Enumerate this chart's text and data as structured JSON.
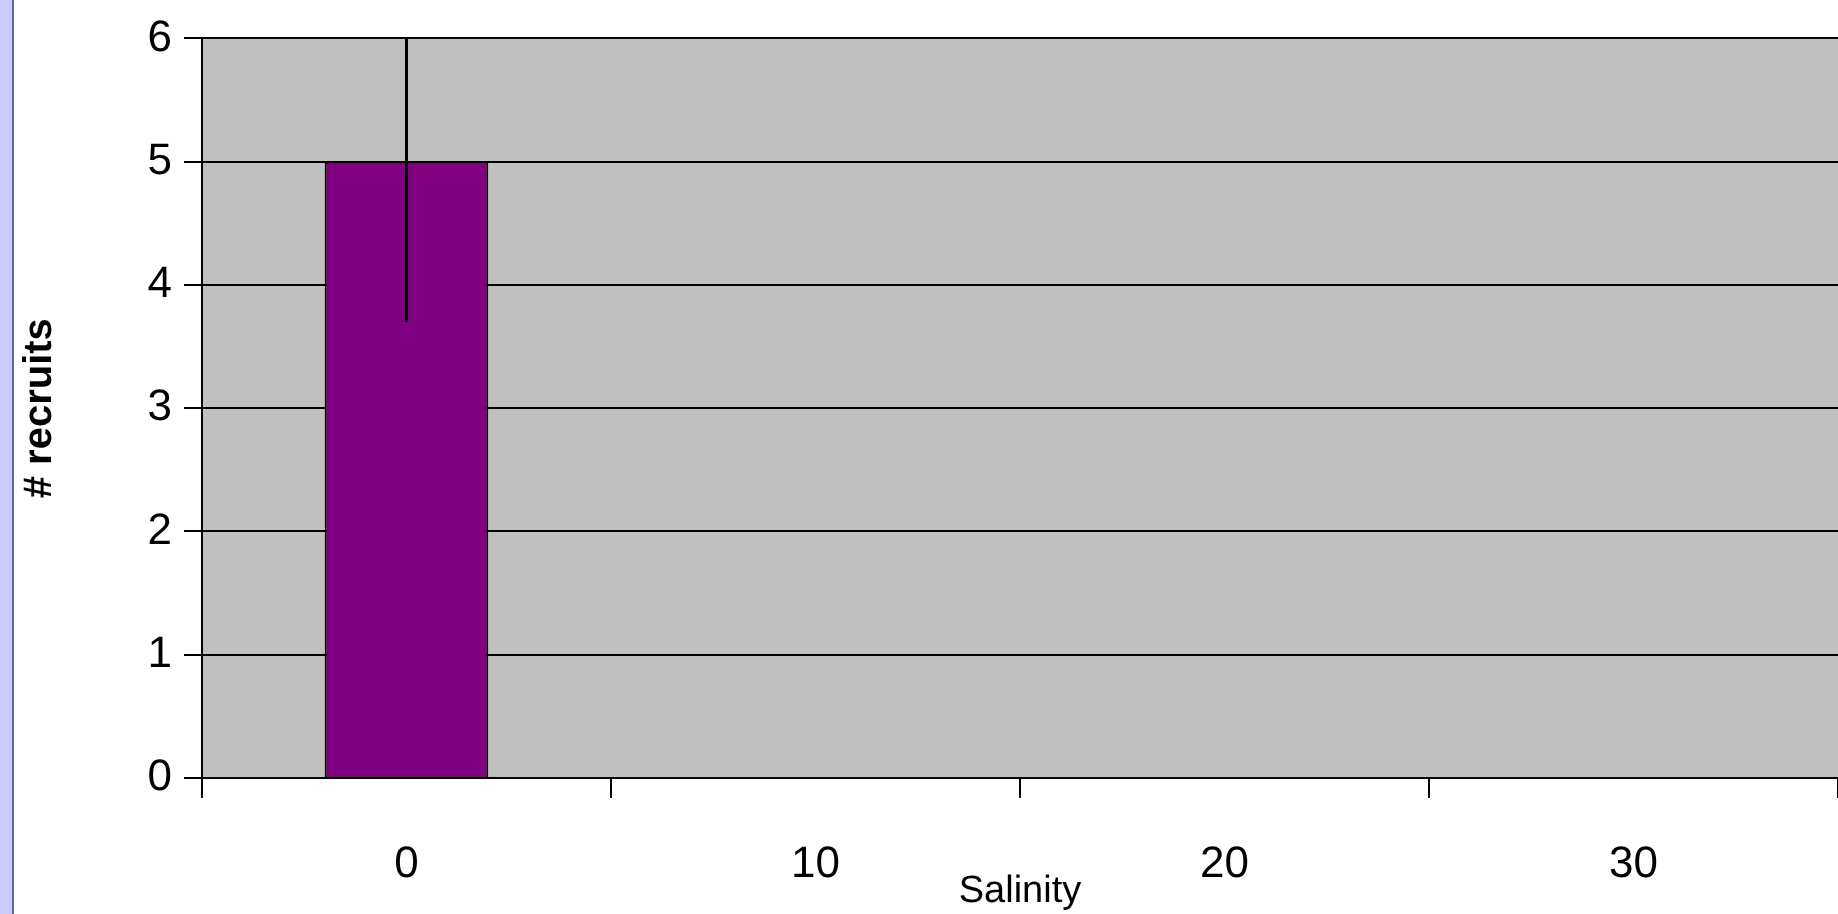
{
  "chart_data": {
    "type": "bar",
    "xlabel": "Salinity",
    "ylabel": "# recruits",
    "categories": [
      "0",
      "10",
      "20",
      "30"
    ],
    "values": [
      5,
      null,
      null,
      null
    ],
    "errors": [
      [
        3.7,
        6
      ],
      null,
      null,
      null
    ],
    "color": "#800080",
    "ylim": [
      0,
      6
    ],
    "yticks": [
      0,
      1,
      2,
      3,
      4,
      5,
      6
    ],
    "grid": "y",
    "legend": false
  }
}
